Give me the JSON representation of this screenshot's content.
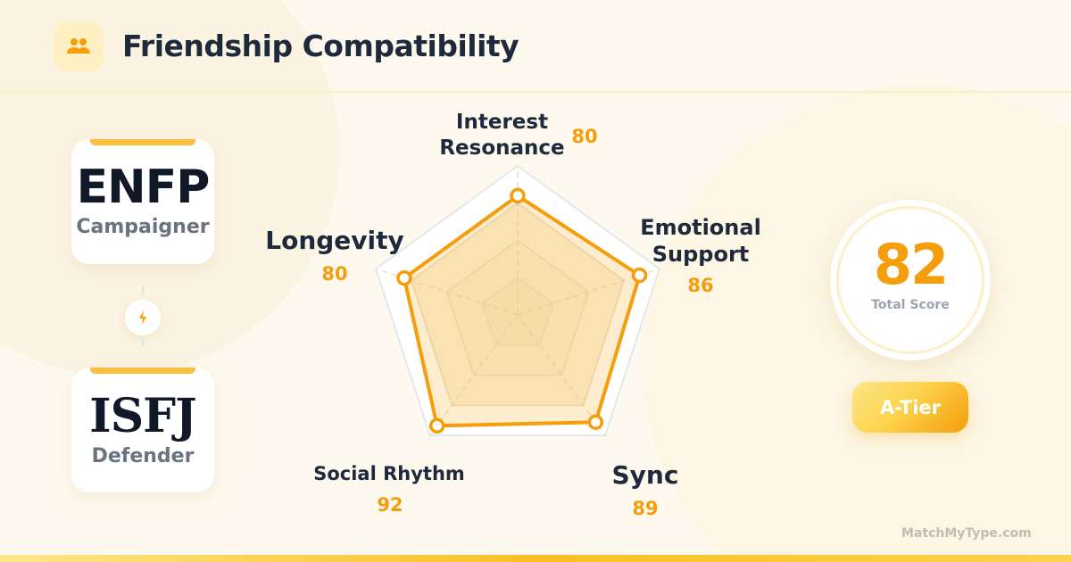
{
  "header": {
    "title": "Friendship Compatibility",
    "icon": "users-icon"
  },
  "types": [
    {
      "code": "ENFP",
      "name": "Campaigner"
    },
    {
      "code": "ISFJ",
      "name": "Defender"
    }
  ],
  "connector_icon": "lightning-icon",
  "chart_data": {
    "type": "radar",
    "categories": [
      "Interest Resonance",
      "Emotional Support",
      "Sync",
      "Social Rhythm",
      "Longevity"
    ],
    "values": [
      80,
      86,
      89,
      92,
      80
    ],
    "labels": [
      {
        "name": "Interest Resonance",
        "value": "80"
      },
      {
        "name": "Emotional Support",
        "value": "86"
      },
      {
        "name": "Sync",
        "value": "89"
      },
      {
        "name": "Social Rhythm",
        "value": "92"
      },
      {
        "name": "Longevity",
        "value": "80"
      }
    ],
    "range": [
      0,
      100
    ],
    "grid_levels": [
      25,
      50,
      75,
      100
    ],
    "color": "#f59e0b"
  },
  "score": {
    "value": "82",
    "label": "Total Score"
  },
  "tier": "A-Tier",
  "footer": "MatchMyType.com"
}
